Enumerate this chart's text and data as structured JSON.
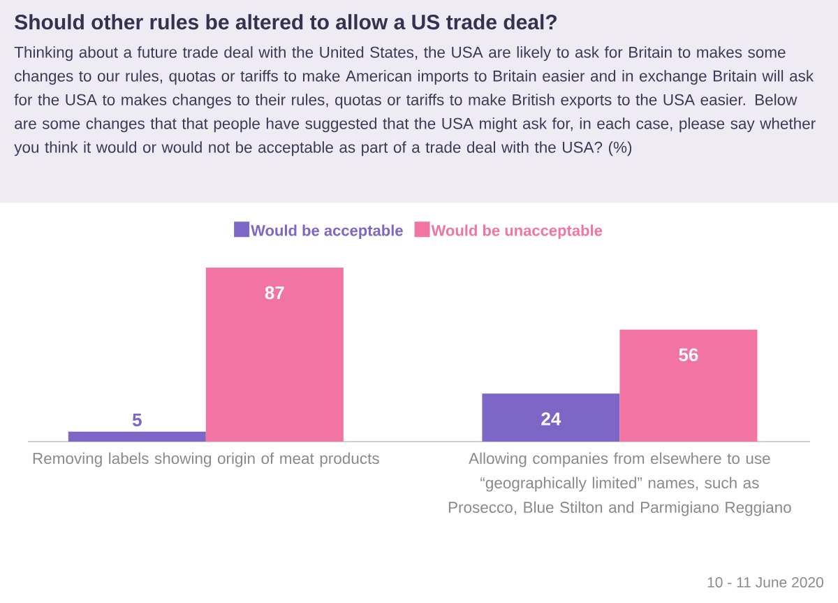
{
  "chart_data": {
    "type": "bar",
    "title": "Should other rules be altered to allow a US trade deal?",
    "subtitle": "Thinking about a future trade deal with the United States, the USA are likely to ask for Britain to makes some changes to our rules, quotas or tariffs to make American imports to Britain easier and in exchange Britain will ask for the USA to makes changes to their rules, quotas or tariffs to make British exports to the USA easier. Below are some changes that that people have suggested that the USA might ask for, in each case, please say whether you think it would or would not be acceptable as part of a trade deal with the USA? (%)",
    "categories": [
      "Removing labels showing origin of meat products",
      "Allowing companies from elsewhere to use “geographically limited” names, such as Prosecco, Blue Stilton and Parmigiano Reggiano"
    ],
    "series": [
      {
        "name": "Would be acceptable",
        "color": "#7e66c6",
        "values": [
          5,
          24
        ]
      },
      {
        "name": "Would be unacceptable",
        "color": "#f274a2",
        "values": [
          87,
          56
        ]
      }
    ],
    "data_labels": true,
    "legend": "top",
    "annotations": [
      "10  - 11 June 2020"
    ]
  }
}
